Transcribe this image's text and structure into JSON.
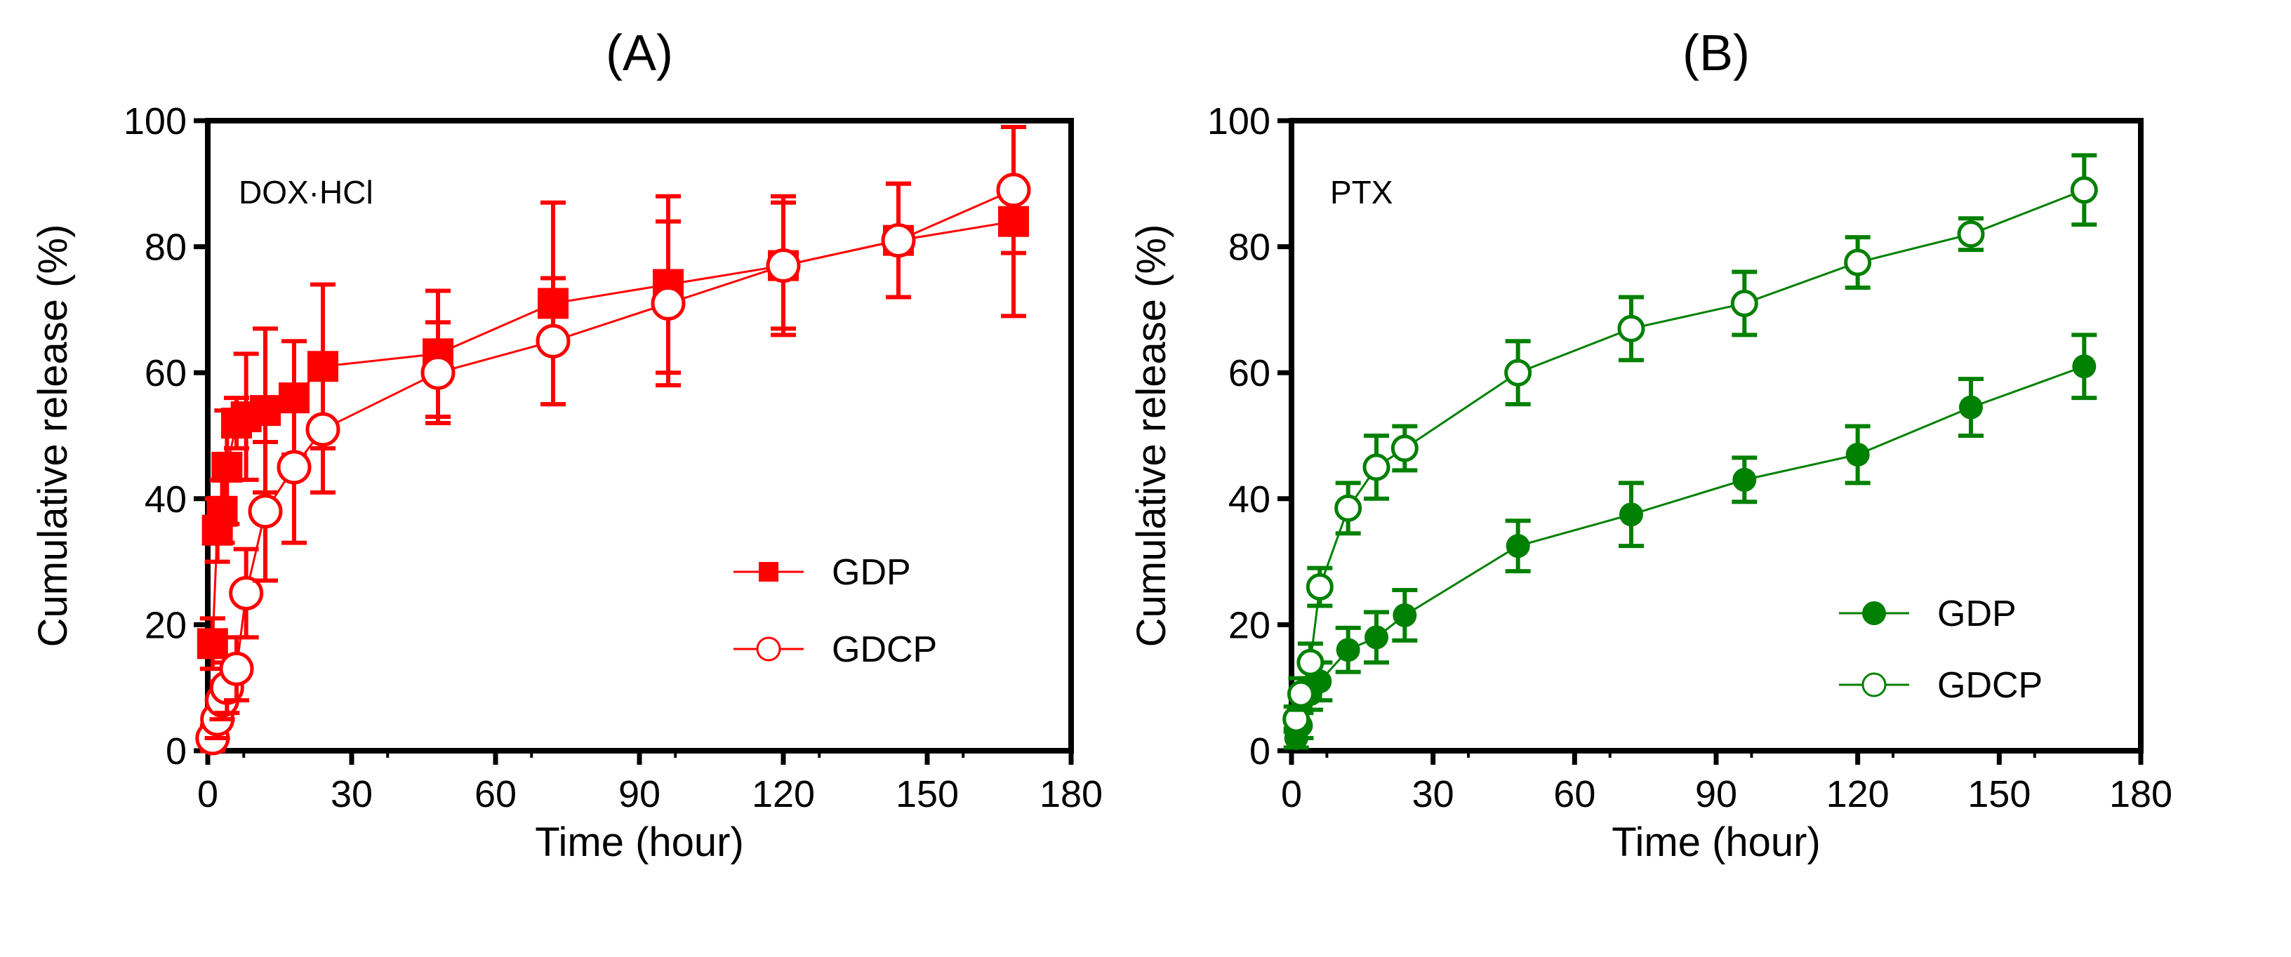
{
  "chart_data": [
    {
      "type": "line",
      "title": "(A)",
      "annotation": "DOX·HCl",
      "xlabel": "Time (hour)",
      "ylabel": "Cumulative release (%)",
      "xlim": [
        0,
        180
      ],
      "ylim": [
        0,
        100
      ],
      "xticks": [
        "0",
        "30",
        "60",
        "90",
        "120",
        "150",
        "180"
      ],
      "yticks": [
        "0",
        "20",
        "40",
        "60",
        "80",
        "100"
      ],
      "color": "#ff0000",
      "legend_position": "bottom-right",
      "series": [
        {
          "name": "GDP",
          "marker": "filled-square",
          "x": [
            1,
            2,
            3,
            4,
            6,
            8,
            12,
            18,
            24,
            48,
            72,
            96,
            120,
            144,
            168
          ],
          "y": [
            17,
            35,
            38,
            45,
            52,
            53,
            54,
            56,
            61,
            63,
            71,
            74,
            77,
            81,
            84
          ],
          "err": [
            4,
            5,
            5,
            9,
            4,
            10,
            13,
            9,
            13,
            10,
            16,
            14,
            11,
            9,
            15
          ]
        },
        {
          "name": "GDCP",
          "marker": "open-circle",
          "x": [
            1,
            2,
            3,
            4,
            6,
            8,
            12,
            18,
            24,
            48,
            72,
            96,
            120,
            144,
            168
          ],
          "y": [
            2,
            5,
            8,
            10,
            13,
            25,
            38,
            45,
            51,
            60,
            65,
            71,
            77,
            81,
            89
          ],
          "err": [
            2,
            3,
            3,
            4,
            5,
            7,
            11,
            12,
            10,
            8,
            10,
            13,
            10,
            9,
            10
          ]
        }
      ]
    },
    {
      "type": "line",
      "title": "(B)",
      "annotation": "PTX",
      "xlabel": "Time (hour)",
      "ylabel": "Cumulative release (%)",
      "xlim": [
        0,
        180
      ],
      "ylim": [
        0,
        100
      ],
      "xticks": [
        "0",
        "30",
        "60",
        "90",
        "120",
        "150",
        "180"
      ],
      "yticks": [
        "0",
        "20",
        "40",
        "60",
        "80",
        "100"
      ],
      "color": "#008000",
      "legend_position": "bottom-right",
      "series": [
        {
          "name": "GDP",
          "marker": "filled-circle",
          "x": [
            1,
            2,
            4,
            6,
            12,
            18,
            24,
            48,
            72,
            96,
            120,
            144,
            168
          ],
          "y": [
            2,
            4,
            9,
            11,
            16,
            18,
            21.5,
            32.5,
            37.5,
            43,
            47,
            54.5,
            61
          ],
          "err": [
            1.5,
            2,
            2.5,
            3,
            3.5,
            4,
            4,
            4,
            5,
            3.5,
            4.5,
            4.5,
            5
          ]
        },
        {
          "name": "GDCP",
          "marker": "open-circle",
          "x": [
            1,
            2,
            4,
            6,
            12,
            18,
            24,
            48,
            72,
            96,
            120,
            144,
            168
          ],
          "y": [
            5,
            9,
            14,
            26,
            38.5,
            45,
            48,
            60,
            67,
            71,
            77.5,
            82,
            89
          ],
          "err": [
            2,
            2.5,
            3,
            3,
            4,
            5,
            3.5,
            5,
            5,
            5,
            4,
            2.5,
            5.5
          ]
        }
      ]
    }
  ]
}
